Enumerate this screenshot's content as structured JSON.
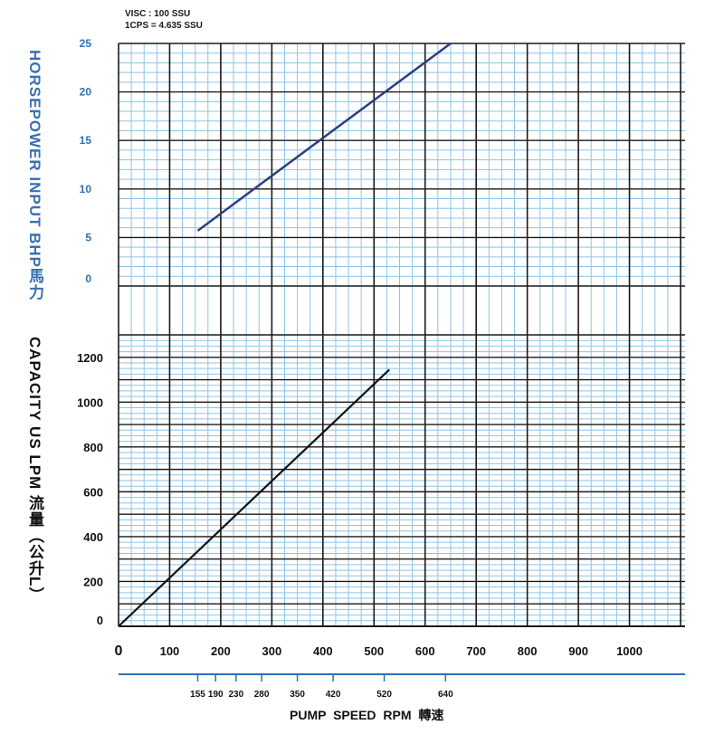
{
  "notes": {
    "visc": "VISC : 100 SSU",
    "cps": "1CPS = 4.635 SSU"
  },
  "colors": {
    "grid_major": "#1a1a1a",
    "grid_minor": "#8fc3e6",
    "hp_line": "#2b3f80",
    "capacity_line": "#111111",
    "axis_blue": "#2f6fb5"
  },
  "chart_data": [
    {
      "type": "line",
      "ylabel": "HORSEPOWER INPUT BHP馬力",
      "ylim": [
        0,
        25
      ],
      "yticks": [
        "0",
        "5",
        "10",
        "15",
        "20",
        "25"
      ],
      "xlim": [
        0,
        1100
      ],
      "series": [
        {
          "x": [
            155,
            650
          ],
          "y": [
            5.7,
            25
          ]
        }
      ]
    },
    {
      "type": "line",
      "ylabel": "CAPACITY US LPM 流量（公升L）",
      "ylim": [
        0,
        1300
      ],
      "yticks": [
        "0",
        "200",
        "400",
        "600",
        "800",
        "1000",
        "1200"
      ],
      "xlim": [
        0,
        1100
      ],
      "xticks": [
        "0",
        "100",
        "200",
        "300",
        "400",
        "500",
        "600",
        "700",
        "800",
        "900",
        "1000"
      ],
      "series": [
        {
          "x": [
            0,
            530
          ],
          "y": [
            0,
            1145
          ]
        }
      ]
    }
  ],
  "pump_axis": {
    "title": "PUMP SPEED RPM   轉速",
    "ticks": [
      "155",
      "190",
      "230",
      "280",
      "350",
      "420",
      "520",
      "640"
    ]
  }
}
